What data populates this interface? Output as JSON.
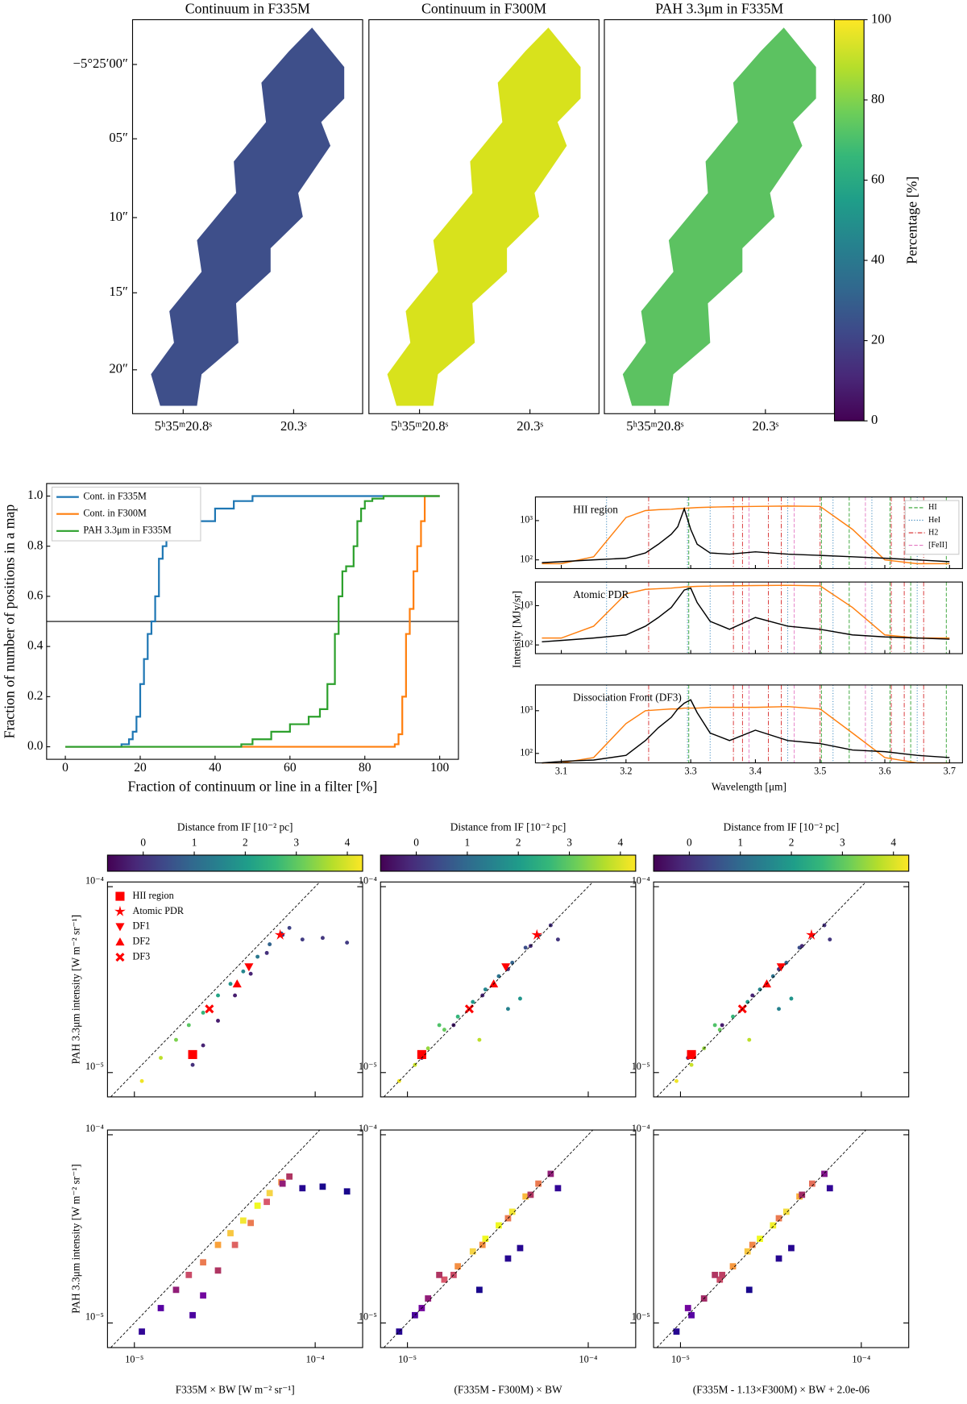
{
  "chart_data": [
    {
      "type": "map",
      "title": "Continuum in F335M",
      "color": "#3e4f8a",
      "ytick_labels": [
        "−5°25′00″",
        "05″",
        "10″",
        "15″",
        "20″"
      ],
      "xtick_labels": [
        "5ʰ35ᵐ20.8ˢ",
        "20.3ˢ"
      ]
    },
    {
      "type": "map",
      "title": "Continuum in F300M",
      "color": "#d8e21c",
      "xtick_labels": [
        "5ʰ35ᵐ20.8ˢ",
        "20.3ˢ"
      ]
    },
    {
      "type": "map",
      "title": "PAH 3.3μm in F335M",
      "color": "#5cc261",
      "xtick_labels": [
        "5ʰ35ᵐ20.8ˢ",
        "20.3ˢ"
      ]
    },
    {
      "type": "colorbar",
      "label": "Percentage [%]",
      "ylim": [
        0,
        100
      ],
      "yticks": [
        0,
        20,
        40,
        60,
        80,
        100
      ]
    },
    {
      "type": "step",
      "xlabel": "Fraction of continuum or line in a filter [%]",
      "ylabel": "Fraction of number of positions in a map",
      "xlim": [
        -5,
        105
      ],
      "ylim": [
        -0.05,
        1.05
      ],
      "xticks": [
        0,
        20,
        40,
        60,
        80,
        100
      ],
      "yticks": [
        {
          "value": 0,
          "label": "0.0"
        },
        {
          "value": 0.2,
          "label": "0.2"
        },
        {
          "value": 0.4,
          "label": "0.4"
        },
        {
          "value": 0.6,
          "label": "0.6"
        },
        {
          "value": 0.8,
          "label": "0.8"
        },
        {
          "value": 1,
          "label": "1.0"
        }
      ],
      "hline": 0.5,
      "legend": "upper left",
      "series": [
        {
          "name": "Cont. in F335M",
          "color": "#1f77b4",
          "x": [
            0,
            10,
            15,
            17,
            18,
            19,
            20,
            21,
            22,
            23,
            24,
            25,
            26,
            27,
            28,
            29,
            30,
            35,
            40,
            45,
            50,
            60,
            100
          ],
          "values": [
            0,
            0,
            0.01,
            0.03,
            0.06,
            0.12,
            0.25,
            0.35,
            0.45,
            0.5,
            0.6,
            0.75,
            0.8,
            0.83,
            0.84,
            0.85,
            0.86,
            0.9,
            0.95,
            0.98,
            1,
            1,
            1
          ]
        },
        {
          "name": "Cont. in F300M",
          "color": "#ff7f0e",
          "x": [
            0,
            85,
            88,
            89,
            90,
            91,
            92,
            93,
            94,
            95,
            96,
            100
          ],
          "values": [
            0,
            0,
            0.01,
            0.05,
            0.2,
            0.45,
            0.55,
            0.7,
            0.8,
            0.9,
            1,
            1
          ]
        },
        {
          "name": "PAH 3.3μm in F335M",
          "color": "#2ca02c",
          "x": [
            0,
            45,
            47,
            50,
            55,
            60,
            65,
            68,
            70,
            72,
            73,
            74,
            75,
            77,
            78,
            79,
            80,
            82,
            85,
            100
          ],
          "values": [
            0,
            0,
            0.01,
            0.03,
            0.06,
            0.09,
            0.12,
            0.15,
            0.25,
            0.45,
            0.6,
            0.7,
            0.72,
            0.8,
            0.9,
            0.95,
            0.98,
            0.99,
            1,
            1
          ]
        }
      ]
    },
    {
      "type": "spectra",
      "xlabel": "Wavelength [μm]",
      "ylabel": "Intensity [MJy/sr]",
      "xlim": [
        3.06,
        3.72
      ],
      "xticks": [
        3.1,
        3.2,
        3.3,
        3.4,
        3.5,
        3.6,
        3.7
      ],
      "ylim": [
        60,
        4000
      ],
      "log_y": true,
      "yticks": [
        {
          "value": 100,
          "label": "10²"
        },
        {
          "value": 1000,
          "label": "10³"
        }
      ],
      "spectrum_color": "#000000",
      "filter_color": "#ff7f0e",
      "x": [
        3.07,
        3.1,
        3.15,
        3.2,
        3.23,
        3.25,
        3.27,
        3.28,
        3.29,
        3.3,
        3.31,
        3.33,
        3.36,
        3.4,
        3.45,
        3.5,
        3.55,
        3.6,
        3.65,
        3.7
      ],
      "panels": [
        {
          "label": "HII region",
          "spectrum": [
            85,
            90,
            100,
            110,
            150,
            250,
            450,
            700,
            2000,
            600,
            250,
            150,
            140,
            160,
            140,
            130,
            120,
            110,
            100,
            90
          ],
          "filter": [
            80,
            80,
            120,
            1200,
            1800,
            1900,
            1950,
            2000,
            2050,
            2100,
            2150,
            2200,
            2250,
            2300,
            2350,
            2300,
            600,
            100,
            80,
            80
          ]
        },
        {
          "label": "Atomic PDR",
          "spectrum": [
            120,
            130,
            150,
            180,
            300,
            500,
            900,
            1500,
            2500,
            2800,
            1200,
            400,
            250,
            500,
            300,
            250,
            180,
            160,
            150,
            140
          ],
          "filter": [
            150,
            150,
            300,
            2000,
            2600,
            2700,
            2800,
            2900,
            3000,
            3050,
            3100,
            3150,
            3200,
            3250,
            3300,
            3200,
            900,
            180,
            150,
            150
          ]
        },
        {
          "label": "Dissociation Front (DF3)",
          "spectrum": [
            60,
            65,
            70,
            90,
            200,
            400,
            700,
            1100,
            1500,
            1800,
            900,
            300,
            200,
            350,
            200,
            170,
            120,
            110,
            90,
            80
          ],
          "filter": [
            60,
            60,
            80,
            500,
            1000,
            1050,
            1100,
            1100,
            1150,
            1150,
            1150,
            1200,
            1200,
            1200,
            1250,
            1100,
            300,
            80,
            60,
            60
          ]
        }
      ],
      "lines": [
        {
          "name": "HI",
          "color": "#2ca02c",
          "style": "dashed",
          "x": [
            3.297,
            3.502,
            3.545,
            3.608,
            3.64,
            3.695
          ]
        },
        {
          "name": "HeI",
          "color": "#1f77b4",
          "style": "dotted",
          "x": [
            3.17,
            3.295,
            3.33,
            3.45,
            3.52,
            3.58,
            3.65
          ]
        },
        {
          "name": "H2",
          "color": "#d62728",
          "style": "dashdot",
          "x": [
            3.235,
            3.366,
            3.38,
            3.42,
            3.44,
            3.5,
            3.61,
            3.63,
            3.66
          ]
        },
        {
          "name": "[FeII]",
          "color": "#e377c2",
          "style": "dashed",
          "x": [
            3.39,
            3.46,
            3.57
          ]
        }
      ]
    },
    {
      "type": "scatter_grid",
      "ylabel": "PAH 3.3μm intensity [W m⁻² sr⁻¹]",
      "xlim": [
        7.1e-06,
        0.000183
      ],
      "ylim": [
        7.4e-06,
        0.000106
      ],
      "log_x": true,
      "log_y": true,
      "xticks": [
        {
          "value": 1e-05,
          "label": "10⁻⁵"
        },
        {
          "value": 0.0001,
          "label": "10⁻⁴"
        }
      ],
      "yticks": [
        {
          "value": 1e-05,
          "label": "10⁻⁵"
        },
        {
          "value": 0.0001,
          "label": "10⁻⁴"
        }
      ],
      "colorbar": {
        "label": "Distance from IF [10⁻² pc]",
        "lim": [
          -0.7,
          4.3
        ],
        "ticks": [
          0,
          1,
          2,
          3,
          4
        ]
      },
      "legend": {
        "names": [
          "HII region",
          "Atomic PDR",
          "DF1",
          "DF2",
          "DF3"
        ],
        "symbols": [
          "square",
          "star",
          "triangle-down",
          "triangle-up",
          "x"
        ],
        "color": "#ff0000"
      },
      "scatter_panels": [
        {
          "x": [
            1.1e-05,
            1.4e-05,
            1.7e-05,
            2e-05,
            2.4e-05,
            2.9e-05,
            3.4e-05,
            4e-05,
            4.8e-05,
            5.6e-05,
            6.5e-05,
            7.2e-05,
            2.1e-05,
            2.4e-05,
            2.9e-05,
            3.6e-05,
            4.4e-05,
            5.4e-05,
            6.6e-05,
            8.5e-05,
            0.00011,
            0.00015
          ],
          "y": [
            9e-06,
            1.2e-05,
            1.5e-05,
            1.8e-05,
            2.1e-05,
            2.6e-05,
            3e-05,
            3.5e-05,
            4.2e-05,
            4.9e-05,
            5.6e-05,
            6e-05,
            1.1e-05,
            1.4e-05,
            1.9e-05,
            2.6e-05,
            3.4e-05,
            4.4e-05,
            5.5e-05,
            5.2e-05,
            5.3e-05,
            5e-05
          ],
          "c": [
            4.2,
            3.8,
            3.3,
            3.0,
            2.6,
            2.2,
            1.9,
            1.6,
            1.3,
            0.9,
            0.6,
            0.3,
            0.0,
            -0.2,
            -0.3,
            -0.3,
            -0.2,
            0.0,
            0.1,
            0.2,
            0.1,
            0.2
          ],
          "marker_x": [
            2.1e-05,
            6.4e-05,
            4.3e-05,
            3.7e-05,
            2.6e-05
          ],
          "marker_y": [
            1.25e-05,
            5.5e-05,
            3.7e-05,
            3e-05,
            2.2e-05
          ]
        },
        {
          "x": [
            9e-06,
            1.1e-05,
            1.3e-05,
            1.6e-05,
            1.5e-05,
            1.9e-05,
            2.3e-05,
            2.7e-05,
            3.2e-05,
            3.8e-05,
            4.5e-05,
            5.3e-05,
            6.2e-05,
            1.2e-05,
            1.8e-05,
            2.6e-05,
            3.6e-05,
            4.8e-05,
            3.6e-05,
            4.2e-05,
            2.5e-05,
            6.8e-05
          ],
          "y": [
            9e-06,
            1.1e-05,
            1.35e-05,
            1.7e-05,
            1.8e-05,
            2e-05,
            2.4e-05,
            2.8e-05,
            3.3e-05,
            3.9e-05,
            4.7e-05,
            5.5e-05,
            6.2e-05,
            1.2e-05,
            1.8e-05,
            2.6e-05,
            3.6e-05,
            4.8e-05,
            2.2e-05,
            2.5e-05,
            1.5e-05,
            5.2e-05
          ],
          "c": [
            4.2,
            3.9,
            3.5,
            3.1,
            2.9,
            2.6,
            2.0,
            1.6,
            1.2,
            0.9,
            0.5,
            0.2,
            0.0,
            -0.3,
            -0.3,
            -0.2,
            -0.1,
            -0.1,
            1.5,
            1.9,
            3.8,
            0.1
          ],
          "marker_x": [
            1.2e-05,
            5.2e-05,
            3.5e-05,
            3e-05,
            2.2e-05
          ],
          "marker_y": [
            1.25e-05,
            5.5e-05,
            3.7e-05,
            3e-05,
            2.2e-05
          ]
        },
        {
          "x": [
            9.5e-06,
            1.15e-05,
            1.35e-05,
            1.65e-05,
            1.55e-05,
            1.95e-05,
            2.35e-05,
            2.75e-05,
            3.25e-05,
            3.85e-05,
            4.55e-05,
            5.35e-05,
            6.25e-05,
            1.1e-05,
            1.7e-05,
            2.5e-05,
            3.5e-05,
            4.7e-05,
            3.5e-05,
            4.1e-05,
            2.4e-05,
            6.7e-05
          ],
          "y": [
            9e-06,
            1.1e-05,
            1.35e-05,
            1.7e-05,
            1.8e-05,
            2e-05,
            2.4e-05,
            2.8e-05,
            3.3e-05,
            3.9e-05,
            4.7e-05,
            5.5e-05,
            6.2e-05,
            1.2e-05,
            1.8e-05,
            2.6e-05,
            3.6e-05,
            4.8e-05,
            2.2e-05,
            2.5e-05,
            1.5e-05,
            5.2e-05
          ],
          "c": [
            4.2,
            3.9,
            3.5,
            3.1,
            2.9,
            2.6,
            2.0,
            1.6,
            1.2,
            0.9,
            0.5,
            0.2,
            0.0,
            -0.3,
            -0.3,
            -0.2,
            -0.1,
            -0.1,
            1.5,
            1.9,
            3.8,
            0.1
          ],
          "marker_x": [
            1.15e-05,
            5.3e-05,
            3.6e-05,
            3e-05,
            2.2e-05
          ],
          "marker_y": [
            1.25e-05,
            5.5e-05,
            3.7e-05,
            3e-05,
            2.2e-05
          ]
        }
      ],
      "hist_panels": [
        {
          "xlabel": "F335M × BW [W m⁻² sr⁻¹]",
          "x": [
            1.1e-05,
            1.4e-05,
            1.7e-05,
            2e-05,
            2.4e-05,
            2.9e-05,
            3.4e-05,
            4e-05,
            4.8e-05,
            5.6e-05,
            6.5e-05,
            7.2e-05,
            2.1e-05,
            2.4e-05,
            2.9e-05,
            3.6e-05,
            4.4e-05,
            5.4e-05,
            6.6e-05,
            8.5e-05,
            0.00011,
            0.00015
          ],
          "y": [
            9e-06,
            1.2e-05,
            1.5e-05,
            1.8e-05,
            2.1e-05,
            2.6e-05,
            3e-05,
            3.5e-05,
            4.2e-05,
            4.9e-05,
            5.6e-05,
            6e-05,
            1.1e-05,
            1.4e-05,
            1.9e-05,
            2.6e-05,
            3.4e-05,
            4.4e-05,
            5.5e-05,
            5.2e-05,
            5.3e-05,
            5e-05
          ],
          "values": [
            3,
            6,
            10,
            14,
            18,
            22,
            25,
            28,
            30,
            26,
            20,
            12,
            5,
            8,
            12,
            16,
            18,
            15,
            10,
            2,
            1,
            1
          ]
        },
        {
          "xlabel": "(F335M - F300M) × BW",
          "x": [
            9e-06,
            1.1e-05,
            1.3e-05,
            1.6e-05,
            1.5e-05,
            1.9e-05,
            2.3e-05,
            2.7e-05,
            3.2e-05,
            3.8e-05,
            4.5e-05,
            5.3e-05,
            6.2e-05,
            1.2e-05,
            1.8e-05,
            2.6e-05,
            3.6e-05,
            4.8e-05,
            3.6e-05,
            4.2e-05,
            2.5e-05,
            6.8e-05
          ],
          "y": [
            9e-06,
            1.1e-05,
            1.35e-05,
            1.7e-05,
            1.8e-05,
            2e-05,
            2.4e-05,
            2.8e-05,
            3.3e-05,
            3.9e-05,
            4.7e-05,
            5.5e-05,
            6.2e-05,
            1.2e-05,
            1.8e-05,
            2.6e-05,
            3.6e-05,
            4.8e-05,
            2.2e-05,
            2.5e-05,
            1.5e-05,
            5.2e-05
          ],
          "values": [
            2,
            5,
            10,
            15,
            12,
            20,
            26,
            30,
            30,
            28,
            24,
            18,
            10,
            8,
            14,
            20,
            18,
            12,
            2,
            2,
            1,
            3
          ]
        },
        {
          "xlabel": "(F335M - 1.13×F300M) × BW + 2.0e-06",
          "x": [
            9.5e-06,
            1.15e-05,
            1.35e-05,
            1.65e-05,
            1.55e-05,
            1.95e-05,
            2.35e-05,
            2.75e-05,
            3.25e-05,
            3.85e-05,
            4.55e-05,
            5.35e-05,
            6.25e-05,
            1.1e-05,
            1.7e-05,
            2.5e-05,
            3.5e-05,
            4.7e-05,
            3.5e-05,
            4.1e-05,
            2.4e-05,
            6.7e-05
          ],
          "y": [
            9e-06,
            1.1e-05,
            1.35e-05,
            1.7e-05,
            1.8e-05,
            2e-05,
            2.4e-05,
            2.8e-05,
            3.3e-05,
            3.9e-05,
            4.7e-05,
            5.5e-05,
            6.2e-05,
            1.2e-05,
            1.8e-05,
            2.6e-05,
            3.6e-05,
            4.8e-05,
            2.2e-05,
            2.5e-05,
            1.5e-05,
            5.2e-05
          ],
          "values": [
            2,
            6,
            11,
            14,
            12,
            21,
            25,
            30,
            29,
            27,
            23,
            17,
            9,
            8,
            13,
            19,
            18,
            11,
            2,
            2,
            1,
            3
          ]
        }
      ]
    }
  ]
}
